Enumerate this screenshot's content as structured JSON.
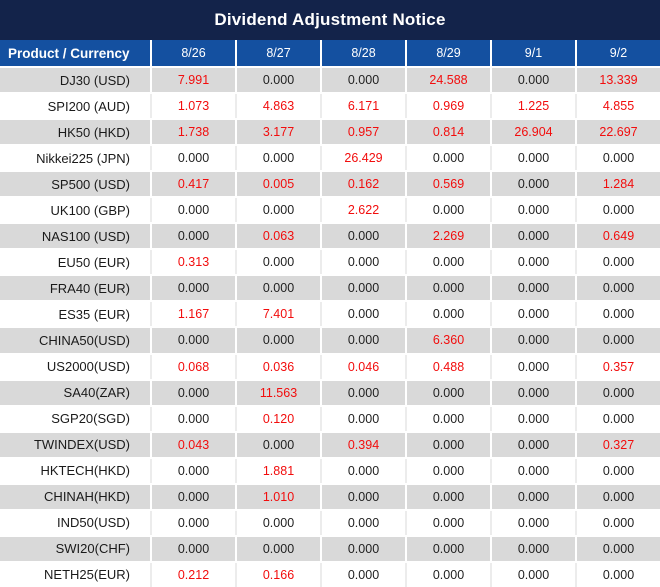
{
  "title": "Dividend Adjustment Notice",
  "table": {
    "product_header": "Product / Currency",
    "date_headers": [
      "8/26",
      "8/27",
      "8/28",
      "8/29",
      "9/1",
      "9/2"
    ],
    "rows": [
      {
        "product": "DJ30 (USD)",
        "values": [
          "7.991",
          "0.000",
          "0.000",
          "24.588",
          "0.000",
          "13.339"
        ],
        "red": [
          true,
          false,
          false,
          true,
          false,
          true
        ]
      },
      {
        "product": "SPI200 (AUD)",
        "values": [
          "1.073",
          "4.863",
          "6.171",
          "0.969",
          "1.225",
          "4.855"
        ],
        "red": [
          true,
          true,
          true,
          true,
          true,
          true
        ]
      },
      {
        "product": "HK50 (HKD)",
        "values": [
          "1.738",
          "3.177",
          "0.957",
          "0.814",
          "26.904",
          "22.697"
        ],
        "red": [
          true,
          true,
          true,
          true,
          true,
          true
        ]
      },
      {
        "product": "Nikkei225 (JPN)",
        "values": [
          "0.000",
          "0.000",
          "26.429",
          "0.000",
          "0.000",
          "0.000"
        ],
        "red": [
          false,
          false,
          true,
          false,
          false,
          false
        ]
      },
      {
        "product": "SP500 (USD)",
        "values": [
          "0.417",
          "0.005",
          "0.162",
          "0.569",
          "0.000",
          "1.284"
        ],
        "red": [
          true,
          true,
          true,
          true,
          false,
          true
        ]
      },
      {
        "product": "UK100 (GBP)",
        "values": [
          "0.000",
          "0.000",
          "2.622",
          "0.000",
          "0.000",
          "0.000"
        ],
        "red": [
          false,
          false,
          true,
          false,
          false,
          false
        ]
      },
      {
        "product": "NAS100 (USD)",
        "values": [
          "0.000",
          "0.063",
          "0.000",
          "2.269",
          "0.000",
          "0.649"
        ],
        "red": [
          false,
          true,
          false,
          true,
          false,
          true
        ]
      },
      {
        "product": "EU50 (EUR)",
        "values": [
          "0.313",
          "0.000",
          "0.000",
          "0.000",
          "0.000",
          "0.000"
        ],
        "red": [
          true,
          false,
          false,
          false,
          false,
          false
        ]
      },
      {
        "product": "FRA40 (EUR)",
        "values": [
          "0.000",
          "0.000",
          "0.000",
          "0.000",
          "0.000",
          "0.000"
        ],
        "red": [
          false,
          false,
          false,
          false,
          false,
          false
        ]
      },
      {
        "product": "ES35 (EUR)",
        "values": [
          "1.167",
          "7.401",
          "0.000",
          "0.000",
          "0.000",
          "0.000"
        ],
        "red": [
          true,
          true,
          false,
          false,
          false,
          false
        ]
      },
      {
        "product": "CHINA50(USD)",
        "values": [
          "0.000",
          "0.000",
          "0.000",
          "6.360",
          "0.000",
          "0.000"
        ],
        "red": [
          false,
          false,
          false,
          true,
          false,
          false
        ]
      },
      {
        "product": "US2000(USD)",
        "values": [
          "0.068",
          "0.036",
          "0.046",
          "0.488",
          "0.000",
          "0.357"
        ],
        "red": [
          true,
          true,
          true,
          true,
          false,
          true
        ]
      },
      {
        "product": "SA40(ZAR)",
        "values": [
          "0.000",
          "11.563",
          "0.000",
          "0.000",
          "0.000",
          "0.000"
        ],
        "red": [
          false,
          true,
          false,
          false,
          false,
          false
        ]
      },
      {
        "product": "SGP20(SGD)",
        "values": [
          "0.000",
          "0.120",
          "0.000",
          "0.000",
          "0.000",
          "0.000"
        ],
        "red": [
          false,
          true,
          false,
          false,
          false,
          false
        ]
      },
      {
        "product": "TWINDEX(USD)",
        "values": [
          "0.043",
          "0.000",
          "0.394",
          "0.000",
          "0.000",
          "0.327"
        ],
        "red": [
          true,
          false,
          true,
          false,
          false,
          true
        ]
      },
      {
        "product": "HKTECH(HKD)",
        "values": [
          "0.000",
          "1.881",
          "0.000",
          "0.000",
          "0.000",
          "0.000"
        ],
        "red": [
          false,
          true,
          false,
          false,
          false,
          false
        ]
      },
      {
        "product": "CHINAH(HKD)",
        "values": [
          "0.000",
          "1.010",
          "0.000",
          "0.000",
          "0.000",
          "0.000"
        ],
        "red": [
          false,
          true,
          false,
          false,
          false,
          false
        ]
      },
      {
        "product": "IND50(USD)",
        "values": [
          "0.000",
          "0.000",
          "0.000",
          "0.000",
          "0.000",
          "0.000"
        ],
        "red": [
          false,
          false,
          false,
          false,
          false,
          false
        ]
      },
      {
        "product": "SWI20(CHF)",
        "values": [
          "0.000",
          "0.000",
          "0.000",
          "0.000",
          "0.000",
          "0.000"
        ],
        "red": [
          false,
          false,
          false,
          false,
          false,
          false
        ]
      },
      {
        "product": "NETH25(EUR)",
        "values": [
          "0.212",
          "0.166",
          "0.000",
          "0.000",
          "0.000",
          "0.000"
        ],
        "red": [
          true,
          true,
          false,
          false,
          false,
          false
        ]
      }
    ]
  },
  "colors": {
    "title_bar_bg": "#13234a",
    "header_bg": "#1450a0",
    "row_alt_bg": "#d9d9d9",
    "red_value": "#f20d0d",
    "zero_value": "#1f1f1f"
  }
}
